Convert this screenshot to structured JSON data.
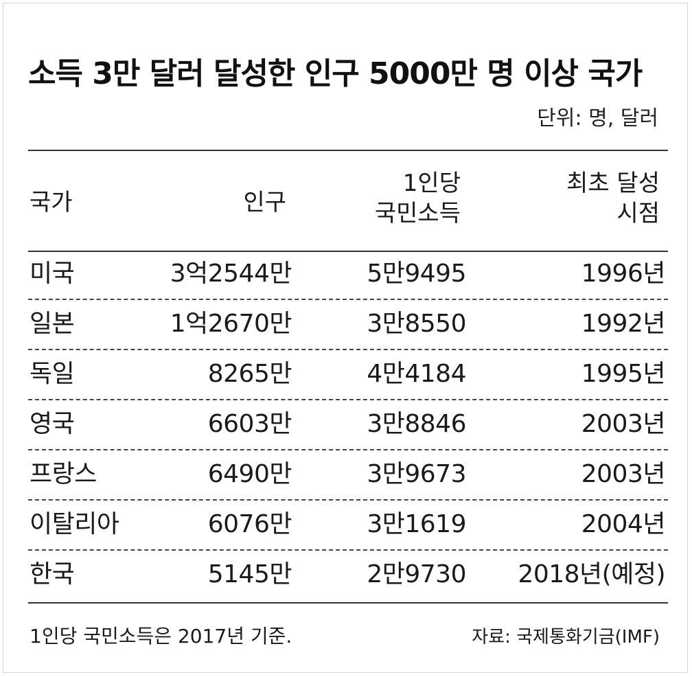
{
  "title": "소득 3만 달러 달성한 인구 5000만 명 이상 국가",
  "unit": "단위: 명, 달러",
  "chart_data": {
    "type": "table",
    "columns": [
      {
        "line1": "국가",
        "line2": ""
      },
      {
        "line1": "인구",
        "line2": ""
      },
      {
        "line1": "1인당",
        "line2": "국민소득"
      },
      {
        "line1": "최초 달성",
        "line2": "시점"
      }
    ],
    "rows": [
      {
        "country": "미국",
        "population": "3억2544만",
        "income": "5만9495",
        "year": "1996년"
      },
      {
        "country": "일본",
        "population": "1억2670만",
        "income": "3만8550",
        "year": "1992년"
      },
      {
        "country": "독일",
        "population": "8265만",
        "income": "4만4184",
        "year": "1995년"
      },
      {
        "country": "영국",
        "population": "6603만",
        "income": "3만8846",
        "year": "2003년"
      },
      {
        "country": "프랑스",
        "population": "6490만",
        "income": "3만9673",
        "year": "2003년"
      },
      {
        "country": "이탈리아",
        "population": "6076만",
        "income": "3만1619",
        "year": "2004년"
      },
      {
        "country": "한국",
        "population": "5145만",
        "income": "2만9730",
        "year": "2018년(예정)"
      }
    ]
  },
  "footnote": "1인당 국민소득은 2017년 기준.",
  "source": "자료: 국제통화기금(IMF)"
}
